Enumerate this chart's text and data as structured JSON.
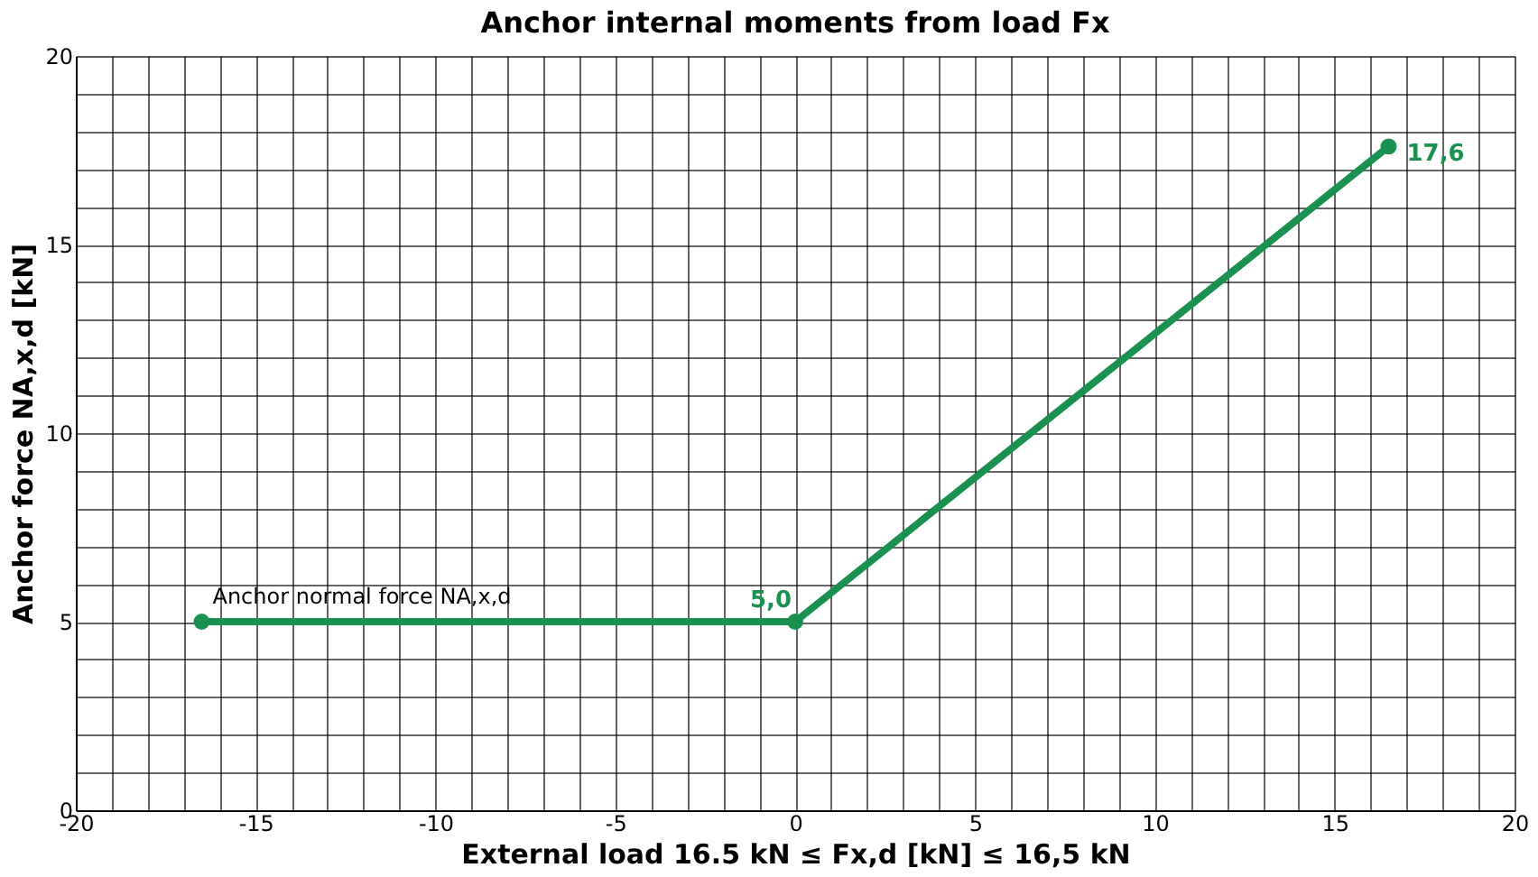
{
  "chart_data": {
    "type": "line",
    "title": "Anchor internal moments from load Fx",
    "xlabel": "External load 16.5  kN ≤ Fx,d [kN] ≤ 16,5 kN",
    "ylabel": "Anchor force NA,x,d [kN]",
    "x": [
      -16.5,
      0,
      16.5
    ],
    "series": [
      {
        "name": "Anchor normal force NA,x,d",
        "color": "#1a9150",
        "values": [
          5,
          5,
          17.6
        ],
        "value_labels": [
          null,
          "5,0",
          "17,6"
        ]
      }
    ],
    "xlim": [
      -20,
      20
    ],
    "ylim": [
      0,
      20
    ],
    "xticks": [
      -20,
      {
        "value": -19,
        "label": null
      },
      {
        "value": -18,
        "label": null
      },
      {
        "value": -17,
        "label": null
      },
      {
        "value": -16,
        "label": null
      },
      -15,
      {
        "value": -14,
        "label": null
      },
      {
        "value": -13,
        "label": null
      },
      {
        "value": -12,
        "label": null
      },
      {
        "value": -11,
        "label": null
      },
      -10,
      {
        "value": -9,
        "label": null
      },
      {
        "value": -8,
        "label": null
      },
      {
        "value": -7,
        "label": null
      },
      {
        "value": -6,
        "label": null
      },
      -5,
      {
        "value": -4,
        "label": null
      },
      {
        "value": -3,
        "label": null
      },
      {
        "value": -2,
        "label": null
      },
      {
        "value": -1,
        "label": null
      },
      0,
      {
        "value": 1,
        "label": null
      },
      {
        "value": 2,
        "label": null
      },
      {
        "value": 3,
        "label": null
      },
      {
        "value": 4,
        "label": null
      },
      5,
      {
        "value": 6,
        "label": null
      },
      {
        "value": 7,
        "label": null
      },
      {
        "value": 8,
        "label": null
      },
      {
        "value": 9,
        "label": null
      },
      10,
      {
        "value": 11,
        "label": null
      },
      {
        "value": 12,
        "label": null
      },
      {
        "value": 13,
        "label": null
      },
      {
        "value": 14,
        "label": null
      },
      15,
      {
        "value": 16,
        "label": null
      },
      {
        "value": 17,
        "label": null
      },
      {
        "value": 18,
        "label": null
      },
      {
        "value": 19,
        "label": null
      },
      20
    ],
    "yticks": [
      0,
      {
        "value": 1,
        "label": null
      },
      {
        "value": 2,
        "label": null
      },
      {
        "value": 3,
        "label": null
      },
      {
        "value": 4,
        "label": null
      },
      5,
      {
        "value": 6,
        "label": null
      },
      {
        "value": 7,
        "label": null
      },
      {
        "value": 8,
        "label": null
      },
      {
        "value": 9,
        "label": null
      },
      10,
      {
        "value": 11,
        "label": null
      },
      {
        "value": 12,
        "label": null
      },
      {
        "value": 13,
        "label": null
      },
      {
        "value": 14,
        "label": null
      },
      15,
      {
        "value": 16,
        "label": null
      },
      {
        "value": 17,
        "label": null
      },
      {
        "value": 18,
        "label": null
      },
      {
        "value": 19,
        "label": null
      },
      20
    ],
    "grid": true,
    "legend": false,
    "marker": "circle",
    "line_style": "solid"
  }
}
